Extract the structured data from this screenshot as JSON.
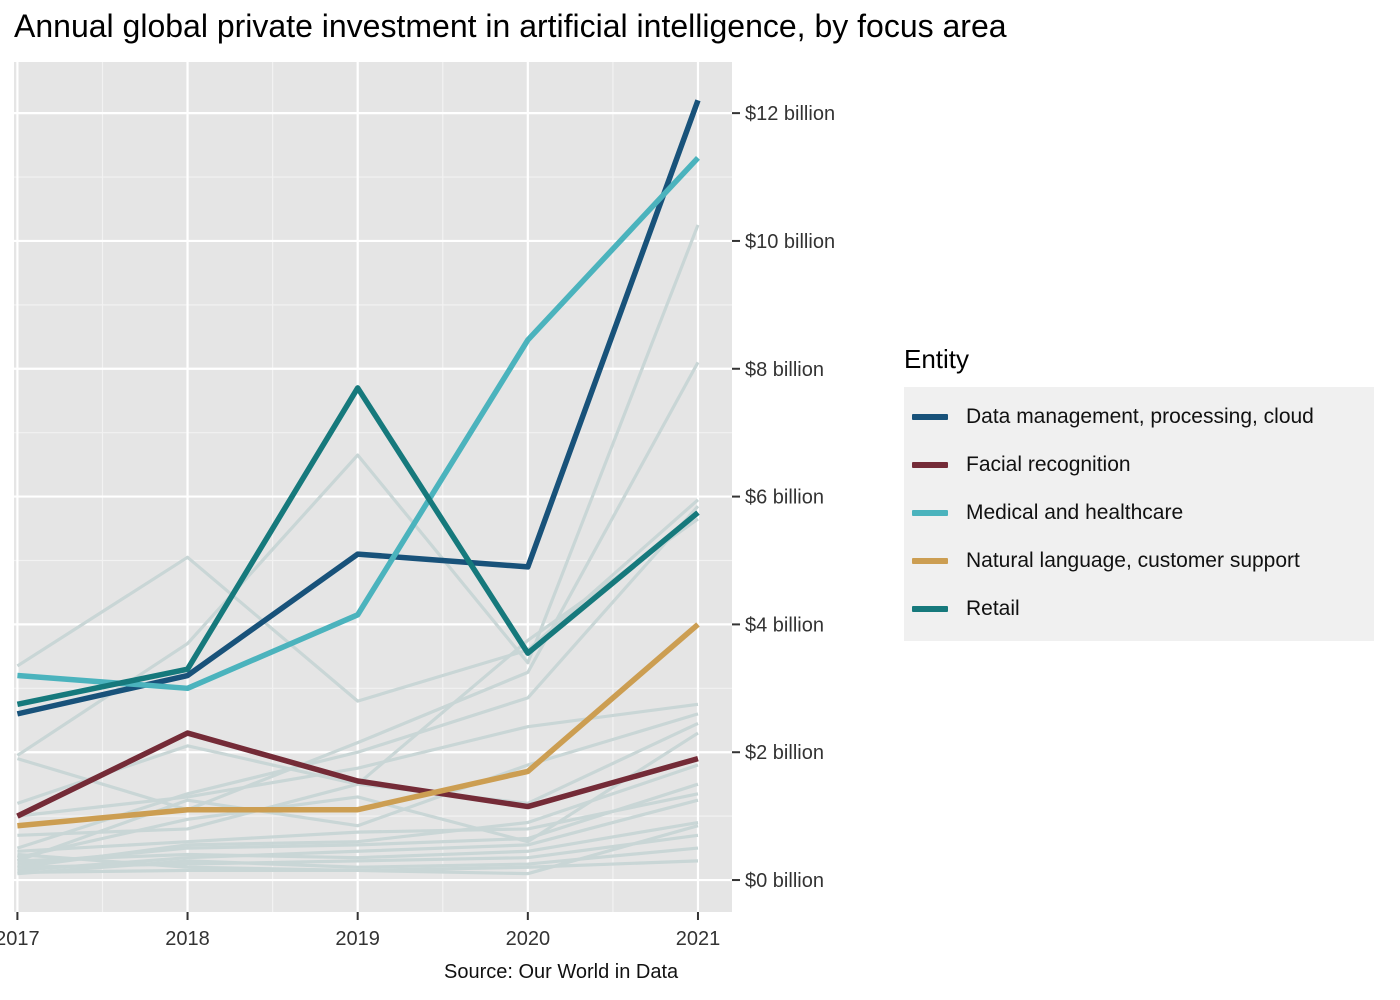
{
  "chart_data": {
    "type": "line",
    "title": "Annual global private investment in artificial intelligence, by focus area",
    "x": [
      2017,
      2018,
      2019,
      2020,
      2021
    ],
    "y_ticks": [
      0,
      2,
      4,
      6,
      8,
      10,
      12
    ],
    "y_tick_labels": [
      "$0 billion",
      "$2 billion",
      "$4 billion",
      "$6 billion",
      "$8 billion",
      "$10 billion",
      "$12 billion"
    ],
    "x_tick_labels": [
      "2017",
      "2018",
      "2019",
      "2020",
      "2021"
    ],
    "ylim": [
      -0.5,
      12.8
    ],
    "xlim": [
      2016.98,
      2021.2
    ],
    "y_axis_position": "right",
    "grid": true,
    "legend_title": "Entity",
    "legend_position": "right",
    "source": "Source: Our World in Data",
    "series": [
      {
        "name": "Data management, processing, cloud",
        "color": "#18527a",
        "values": [
          2.6,
          3.2,
          5.1,
          4.9,
          12.2
        ]
      },
      {
        "name": "Facial recognition",
        "color": "#742b37",
        "values": [
          1.0,
          2.3,
          1.55,
          1.15,
          1.9
        ]
      },
      {
        "name": "Medical and healthcare",
        "color": "#4bb3bd",
        "values": [
          3.2,
          3.0,
          4.15,
          8.45,
          11.3
        ]
      },
      {
        "name": "Natural language, customer support",
        "color": "#cc9e52",
        "values": [
          0.85,
          1.1,
          1.1,
          1.7,
          4.0
        ]
      },
      {
        "name": "Retail",
        "color": "#16797c",
        "values": [
          2.75,
          3.3,
          7.7,
          3.55,
          5.75
        ]
      }
    ],
    "background_series": [
      [
        3.35,
        5.05,
        2.8,
        3.6,
        5.95
      ],
      [
        1.95,
        3.7,
        6.65,
        3.4,
        10.25
      ],
      [
        1.9,
        1.1,
        2.15,
        3.25,
        8.1
      ],
      [
        1.2,
        2.1,
        1.5,
        3.75,
        5.65
      ],
      [
        0.5,
        1.35,
        2.0,
        2.85,
        5.85
      ],
      [
        1.0,
        1.3,
        1.75,
        2.4,
        2.75
      ],
      [
        0.3,
        1.25,
        0.85,
        1.8,
        2.6
      ],
      [
        0.7,
        0.8,
        1.5,
        1.2,
        2.45
      ],
      [
        0.35,
        0.95,
        1.3,
        0.6,
        2.3
      ],
      [
        0.25,
        0.5,
        0.55,
        0.65,
        1.5
      ],
      [
        0.45,
        0.6,
        0.75,
        0.8,
        1.35
      ],
      [
        0.15,
        0.35,
        0.45,
        0.55,
        1.25
      ],
      [
        0.3,
        0.4,
        0.35,
        0.45,
        0.9
      ],
      [
        0.2,
        0.25,
        0.3,
        0.35,
        0.7
      ],
      [
        0.1,
        0.3,
        0.2,
        0.25,
        0.5
      ],
      [
        0.12,
        0.15,
        0.15,
        0.2,
        0.3
      ],
      [
        0.4,
        0.2,
        0.15,
        0.1,
        0.85
      ],
      [
        0.2,
        0.55,
        0.6,
        0.9,
        1.8
      ]
    ],
    "background_color": "#c9d6d6"
  }
}
